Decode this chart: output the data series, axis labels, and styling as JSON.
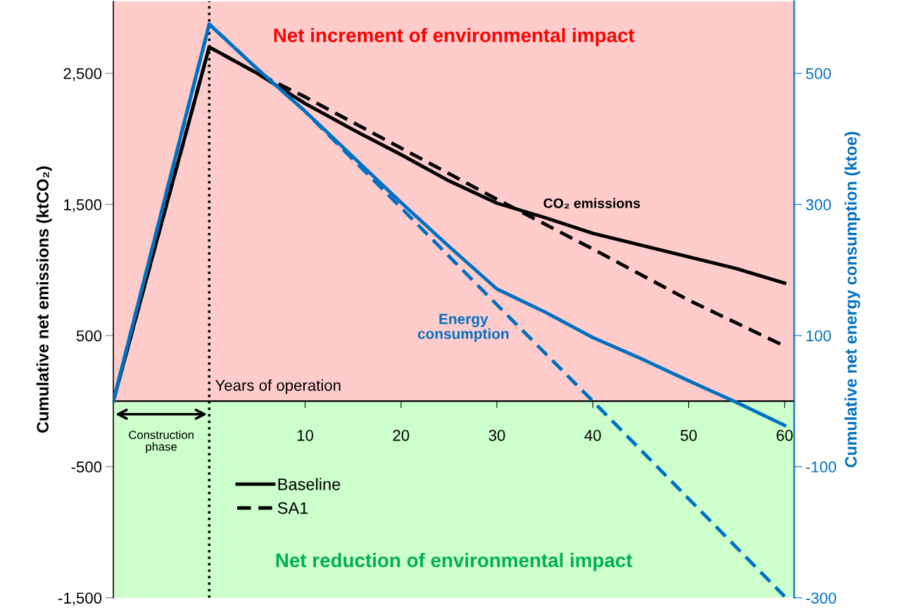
{
  "chart_data": {
    "type": "line",
    "xlabel": "Years of operation",
    "ylabel": "Cumulative net emissions (ktCO₂)",
    "y2label": "Cumulative net energy consumption (ktoe)",
    "xlim": [
      -10,
      61
    ],
    "xticks": [
      10,
      20,
      30,
      40,
      50,
      60
    ],
    "ylim": [
      -1500,
      3050
    ],
    "yticks": [
      {
        "value": 2500,
        "label": "2,500"
      },
      {
        "value": 1500,
        "label": "1,500"
      },
      500,
      -500,
      {
        "value": -1500,
        "label": "-1,500"
      }
    ],
    "y2lim": [
      -300,
      610
    ],
    "y2ticks": [
      500,
      300,
      100,
      -100,
      -300
    ],
    "series": [
      {
        "name": "Baseline",
        "color": "#000000",
        "line_style": "solid",
        "x": [
          -10,
          0,
          5,
          10,
          15,
          20,
          25,
          30,
          35,
          40,
          45,
          50,
          55,
          60
        ],
        "values": [
          0,
          2700,
          2500,
          2270,
          2070,
          1880,
          1680,
          1510,
          1400,
          1280,
          1190,
          1100,
          1010,
          900
        ]
      },
      {
        "name": "SA1",
        "color": "#000000",
        "line_style": "dashed",
        "x": [
          -10,
          0,
          5,
          10,
          20,
          30,
          40,
          50,
          60
        ],
        "values": [
          0,
          2700,
          2500,
          2320,
          1930,
          1540,
          1160,
          770,
          420
        ]
      },
      {
        "color": "#0070c0",
        "axis": "y2",
        "line_style": "solid",
        "x": [
          -10,
          0,
          5,
          10,
          20,
          25,
          30,
          35,
          40,
          45,
          50,
          55,
          60
        ],
        "values": [
          0,
          575,
          507,
          442,
          303,
          236,
          171,
          136,
          97,
          65,
          31,
          -2,
          -37
        ]
      },
      {
        "color": "#0070c0",
        "axis": "y2",
        "line_style": "dashed",
        "x": [
          -10,
          0,
          5,
          10,
          20,
          30,
          40,
          50,
          60
        ],
        "values": [
          0,
          575,
          507,
          442,
          295,
          147,
          0,
          -149,
          -298
        ]
      }
    ],
    "ref_lines": [
      {
        "axis": "x",
        "value": 0,
        "color": "#000000",
        "line_style": "dotted"
      }
    ],
    "bands": [
      {
        "axis": "y",
        "from": 0,
        "to": 3050,
        "label": "Net increment of environmental impact",
        "color": "#ffcccc"
      },
      {
        "axis": "y",
        "from": -1500,
        "to": 0,
        "label": "Net reduction of environmental impact",
        "color": "#ccffcc"
      }
    ],
    "annotations": [
      "CO₂ emissions",
      "Energy\nconsumption",
      "Construction\nphase"
    ],
    "legend": "bottom left",
    "grid": false
  }
}
